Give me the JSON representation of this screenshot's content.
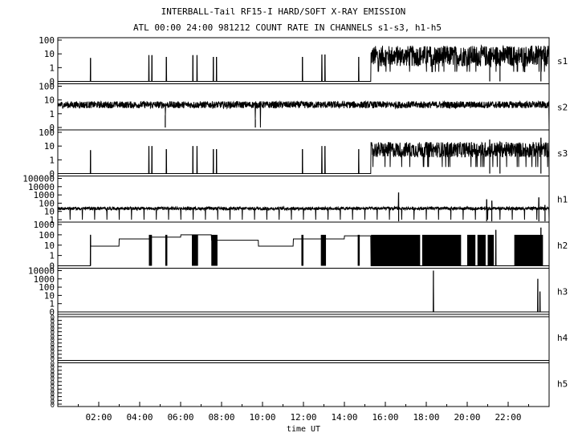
{
  "title_line1": "INTERBALL-Tail RF15-I HARD/SOFT X-RAY EMISSION",
  "title_line2": "ATL 00:00 24:00 981212  COUNT RATE IN CHANNELS s1-s3, h1-h5",
  "chart_data": {
    "type": "line",
    "xlabel": "time UT",
    "xlim": [
      0,
      24
    ],
    "x_ticks": [
      {
        "value": 2,
        "label": "02:00"
      },
      {
        "value": 4,
        "label": "04:00"
      },
      {
        "value": 6,
        "label": "06:00"
      },
      {
        "value": 8,
        "label": "08:00"
      },
      {
        "value": 10,
        "label": "10:00"
      },
      {
        "value": 12,
        "label": "12:00"
      },
      {
        "value": 14,
        "label": "14:00"
      },
      {
        "value": 16,
        "label": "16:00"
      },
      {
        "value": 18,
        "label": "18:00"
      },
      {
        "value": 20,
        "label": "20:00"
      },
      {
        "value": 22,
        "label": "22:00"
      }
    ],
    "y_scale": "log",
    "panels": [
      {
        "name": "s1",
        "y_ticks": [
          "100",
          "10",
          "1",
          "0"
        ],
        "baseline": "zero",
        "noise": {
          "start": 15.3,
          "end": 24,
          "low": 1.2,
          "high": 40
        },
        "spikes": [
          {
            "t": 1.6,
            "v": 5
          },
          {
            "t": 4.45,
            "v": 8
          },
          {
            "t": 4.6,
            "v": 8
          },
          {
            "t": 5.3,
            "v": 6
          },
          {
            "t": 6.6,
            "v": 8
          },
          {
            "t": 6.8,
            "v": 8
          },
          {
            "t": 7.6,
            "v": 6
          },
          {
            "t": 7.75,
            "v": 6
          },
          {
            "t": 11.95,
            "v": 6
          },
          {
            "t": 12.9,
            "v": 9
          },
          {
            "t": 13.05,
            "v": 9
          },
          {
            "t": 14.7,
            "v": 6
          },
          {
            "t": 21.1,
            "v": 25
          },
          {
            "t": 21.6,
            "v": 20
          },
          {
            "t": 23.6,
            "v": 35
          }
        ]
      },
      {
        "name": "s2",
        "y_ticks": [
          "100",
          "10",
          "1",
          "0"
        ],
        "baseline": "noise",
        "noise": {
          "start": 0,
          "end": 24,
          "low": 2.5,
          "high": 8
        },
        "spikes": [
          {
            "t": 9.65,
            "v": 0.4
          },
          {
            "t": 9.9,
            "v": 0
          },
          {
            "t": 5.25,
            "v": 0.8
          }
        ]
      },
      {
        "name": "s3",
        "y_ticks": [
          "100",
          "10",
          "1",
          "0"
        ],
        "baseline": "zero",
        "noise": {
          "start": 15.3,
          "end": 24,
          "low": 1.5,
          "high": 20
        },
        "spikes": [
          {
            "t": 1.6,
            "v": 5
          },
          {
            "t": 4.45,
            "v": 10
          },
          {
            "t": 4.6,
            "v": 10
          },
          {
            "t": 5.3,
            "v": 6
          },
          {
            "t": 6.6,
            "v": 10
          },
          {
            "t": 6.8,
            "v": 10
          },
          {
            "t": 7.6,
            "v": 6
          },
          {
            "t": 7.75,
            "v": 6
          },
          {
            "t": 11.95,
            "v": 6
          },
          {
            "t": 12.9,
            "v": 10
          },
          {
            "t": 13.05,
            "v": 10
          },
          {
            "t": 14.7,
            "v": 6
          },
          {
            "t": 21.1,
            "v": 30
          },
          {
            "t": 21.6,
            "v": 20
          },
          {
            "t": 23.6,
            "v": 40
          }
        ]
      },
      {
        "name": "h1",
        "y_ticks": [
          "100000",
          "10000",
          "1000",
          "100",
          "10",
          "1"
        ],
        "baseline": "level",
        "level": 20,
        "noise": {
          "start": 0,
          "end": 24,
          "low": 15,
          "high": 35
        },
        "dips_every": 0.6,
        "dip_value": 1,
        "spikes": [
          {
            "t": 16.65,
            "v": 2000
          },
          {
            "t": 20.95,
            "v": 300
          },
          {
            "t": 21.2,
            "v": 200
          },
          {
            "t": 23.5,
            "v": 500
          },
          {
            "t": 23.8,
            "v": 60
          }
        ]
      },
      {
        "name": "h2",
        "y_ticks": [
          "1000",
          "100",
          "10",
          "1",
          "0"
        ],
        "baseline": "zero",
        "step_levels": [
          {
            "start": 1.6,
            "end": 3.0,
            "v": 8
          },
          {
            "start": 3.0,
            "end": 4.5,
            "v": 40
          },
          {
            "start": 4.5,
            "end": 6.0,
            "v": 60
          },
          {
            "start": 6.0,
            "end": 7.5,
            "v": 100
          },
          {
            "start": 7.5,
            "end": 9.8,
            "v": 30
          },
          {
            "start": 9.8,
            "end": 11.5,
            "v": 8
          },
          {
            "start": 11.5,
            "end": 14.0,
            "v": 40
          },
          {
            "start": 14.0,
            "end": 15.3,
            "v": 80
          }
        ],
        "bursts": [
          {
            "start": 4.45,
            "end": 4.6
          },
          {
            "start": 5.25,
            "end": 5.35
          },
          {
            "start": 6.55,
            "end": 6.85
          },
          {
            "start": 7.5,
            "end": 7.8
          },
          {
            "start": 11.9,
            "end": 12.0
          },
          {
            "start": 12.85,
            "end": 13.1
          },
          {
            "start": 14.65,
            "end": 14.75
          },
          {
            "start": 15.3,
            "end": 17.7
          },
          {
            "start": 17.8,
            "end": 19.7
          },
          {
            "start": 20.0,
            "end": 20.4
          },
          {
            "start": 20.5,
            "end": 20.9
          },
          {
            "start": 21.0,
            "end": 21.3
          },
          {
            "start": 22.3,
            "end": 23.7
          }
        ],
        "burst_value": 100,
        "spikes": [
          {
            "t": 1.6,
            "v": 100
          },
          {
            "t": 21.4,
            "v": 300
          },
          {
            "t": 23.6,
            "v": 500
          }
        ]
      },
      {
        "name": "h3",
        "y_ticks": [
          "10000",
          "1000",
          "100",
          "10",
          "1",
          "0"
        ],
        "baseline": "zero",
        "spikes": [
          {
            "t": 18.35,
            "v": 10000
          },
          {
            "t": 23.45,
            "v": 1000
          },
          {
            "t": 23.55,
            "v": 30
          }
        ]
      },
      {
        "name": "h4",
        "y_ticks": [
          "0",
          "0",
          "0",
          "0",
          "0",
          "0",
          "0",
          "0",
          "0",
          "0",
          "0",
          "0"
        ],
        "baseline": "zero",
        "spikes": []
      },
      {
        "name": "h5",
        "y_ticks": [
          "0",
          "0",
          "0",
          "0",
          "0",
          "0",
          "0",
          "0",
          "0",
          "0",
          "0",
          "0"
        ],
        "baseline": "zero",
        "spikes": []
      }
    ]
  }
}
